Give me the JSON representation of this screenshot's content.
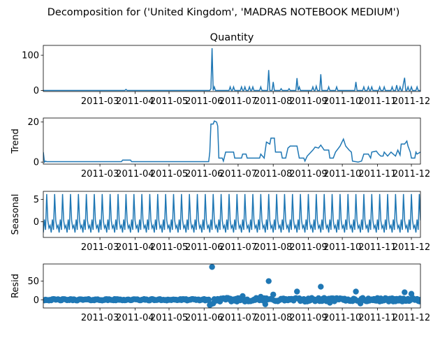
{
  "suptitle": "Decomposition for ('United Kingdom', 'MADRAS NOTEBOOK MEDIUM')",
  "line_color": "#1f77b4",
  "chart_data": [
    {
      "type": "line",
      "title": "Quantity",
      "ylabel": "",
      "xlim": [
        "2011-01-10",
        "2011-12-09"
      ],
      "ylim": [
        -3,
        128
      ],
      "yticks": [
        0,
        100
      ],
      "xticks": [
        "2011-03",
        "2011-04",
        "2011-05",
        "2011-06",
        "2011-07",
        "2011-08",
        "2011-09",
        "2011-10",
        "2011-11",
        "2011-12"
      ],
      "baseline": 0,
      "points": [
        [
          "2011-03-24",
          3
        ],
        [
          "2011-06-07",
          5
        ],
        [
          "2011-06-08",
          120
        ],
        [
          "2011-06-10",
          10
        ],
        [
          "2011-06-24",
          10
        ],
        [
          "2011-06-27",
          10
        ],
        [
          "2011-07-04",
          10
        ],
        [
          "2011-07-07",
          10
        ],
        [
          "2011-07-11",
          10
        ],
        [
          "2011-07-14",
          10
        ],
        [
          "2011-07-21",
          10
        ],
        [
          "2011-07-28",
          58
        ],
        [
          "2011-08-01",
          24
        ],
        [
          "2011-08-08",
          5
        ],
        [
          "2011-08-15",
          5
        ],
        [
          "2011-08-22",
          35
        ],
        [
          "2011-08-24",
          10
        ],
        [
          "2011-09-05",
          10
        ],
        [
          "2011-09-08",
          12
        ],
        [
          "2011-09-12",
          46
        ],
        [
          "2011-09-19",
          10
        ],
        [
          "2011-09-26",
          10
        ],
        [
          "2011-10-13",
          24
        ],
        [
          "2011-10-20",
          10
        ],
        [
          "2011-10-24",
          10
        ],
        [
          "2011-10-27",
          10
        ],
        [
          "2011-11-03",
          10
        ],
        [
          "2011-11-07",
          10
        ],
        [
          "2011-11-14",
          10
        ],
        [
          "2011-11-18",
          15
        ],
        [
          "2011-11-21",
          10
        ],
        [
          "2011-11-24",
          20
        ],
        [
          "2011-11-25",
          36
        ],
        [
          "2011-11-28",
          10
        ],
        [
          "2011-12-01",
          10
        ],
        [
          "2011-12-06",
          10
        ]
      ]
    },
    {
      "type": "line",
      "title": "",
      "ylabel": "Trend",
      "xlim": [
        "2011-01-10",
        "2011-12-09"
      ],
      "ylim": [
        -1,
        22
      ],
      "yticks": [
        0,
        20
      ],
      "xticks": [
        "2011-03",
        "2011-04",
        "2011-05",
        "2011-06",
        "2011-07",
        "2011-08",
        "2011-09",
        "2011-10",
        "2011-11",
        "2011-12"
      ],
      "points": [
        [
          "2011-01-10",
          5
        ],
        [
          "2011-01-11",
          0
        ],
        [
          "2011-01-12",
          0.5
        ],
        [
          "2011-01-13",
          0.2
        ],
        [
          "2011-03-20",
          0.2
        ],
        [
          "2011-03-21",
          1
        ],
        [
          "2011-03-28",
          1
        ],
        [
          "2011-03-29",
          0.2
        ],
        [
          "2011-06-05",
          0.2
        ],
        [
          "2011-06-06",
          5
        ],
        [
          "2011-06-07",
          19
        ],
        [
          "2011-06-09",
          19
        ],
        [
          "2011-06-10",
          20.5
        ],
        [
          "2011-06-12",
          20
        ],
        [
          "2011-06-13",
          18
        ],
        [
          "2011-06-14",
          2
        ],
        [
          "2011-06-17",
          2
        ],
        [
          "2011-06-18",
          0.5
        ],
        [
          "2011-06-20",
          5
        ],
        [
          "2011-06-27",
          5
        ],
        [
          "2011-06-28",
          2
        ],
        [
          "2011-07-04",
          2
        ],
        [
          "2011-07-05",
          4
        ],
        [
          "2011-07-08",
          4
        ],
        [
          "2011-07-09",
          2
        ],
        [
          "2011-07-20",
          2
        ],
        [
          "2011-07-21",
          4
        ],
        [
          "2011-07-24",
          2
        ],
        [
          "2011-07-26",
          10
        ],
        [
          "2011-07-29",
          9
        ],
        [
          "2011-07-30",
          12
        ],
        [
          "2011-08-02",
          12
        ],
        [
          "2011-08-03",
          5
        ],
        [
          "2011-08-08",
          5
        ],
        [
          "2011-08-09",
          2
        ],
        [
          "2011-08-12",
          2
        ],
        [
          "2011-08-14",
          7
        ],
        [
          "2011-08-16",
          8
        ],
        [
          "2011-08-22",
          8
        ],
        [
          "2011-08-24",
          2
        ],
        [
          "2011-08-28",
          2
        ],
        [
          "2011-08-29",
          0.5
        ],
        [
          "2011-08-31",
          3
        ],
        [
          "2011-09-05",
          6
        ],
        [
          "2011-09-07",
          7.5
        ],
        [
          "2011-09-10",
          7
        ],
        [
          "2011-09-12",
          8.5
        ],
        [
          "2011-09-15",
          6
        ],
        [
          "2011-09-19",
          6
        ],
        [
          "2011-09-20",
          2
        ],
        [
          "2011-09-23",
          2
        ],
        [
          "2011-09-25",
          5
        ],
        [
          "2011-09-29",
          8
        ],
        [
          "2011-10-02",
          11.5
        ],
        [
          "2011-10-04",
          8
        ],
        [
          "2011-10-07",
          6
        ],
        [
          "2011-10-09",
          5
        ],
        [
          "2011-10-10",
          0.5
        ],
        [
          "2011-10-15",
          0
        ],
        [
          "2011-10-18",
          0.5
        ],
        [
          "2011-10-20",
          4
        ],
        [
          "2011-10-24",
          4
        ],
        [
          "2011-10-26",
          2
        ],
        [
          "2011-10-27",
          5
        ],
        [
          "2011-10-31",
          5.5
        ],
        [
          "2011-11-02",
          4
        ],
        [
          "2011-11-04",
          3
        ],
        [
          "2011-11-06",
          3
        ],
        [
          "2011-11-07",
          5
        ],
        [
          "2011-11-10",
          3
        ],
        [
          "2011-11-13",
          5
        ],
        [
          "2011-11-15",
          4
        ],
        [
          "2011-11-17",
          3
        ],
        [
          "2011-11-19",
          6
        ],
        [
          "2011-11-21",
          3.5
        ],
        [
          "2011-11-22",
          9
        ],
        [
          "2011-11-25",
          9
        ],
        [
          "2011-11-27",
          10.5
        ],
        [
          "2011-11-28",
          8
        ],
        [
          "2011-11-30",
          5
        ],
        [
          "2011-12-01",
          2
        ],
        [
          "2011-12-04",
          2
        ],
        [
          "2011-12-05",
          5
        ],
        [
          "2011-12-06",
          4
        ],
        [
          "2011-12-09",
          5
        ]
      ]
    },
    {
      "type": "line",
      "title": "",
      "ylabel": "Seasonal",
      "xlim": [
        "2011-01-10",
        "2011-12-09"
      ],
      "ylim": [
        -3.5,
        6.8
      ],
      "yticks": [
        0,
        5
      ],
      "xticks": [
        "2011-03",
        "2011-04",
        "2011-05",
        "2011-06",
        "2011-07",
        "2011-08",
        "2011-09",
        "2011-10",
        "2011-11",
        "2011-12"
      ],
      "period_days": 7,
      "pattern": [
        -2.4,
        0.5,
        -1.8,
        6.2,
        0.3,
        -1.4,
        -0.8
      ]
    },
    {
      "type": "scatter",
      "title": "",
      "ylabel": "Resid",
      "xlim": [
        "2011-01-10",
        "2011-12-09"
      ],
      "ylim": [
        -22,
        96
      ],
      "yticks": [
        0,
        50
      ],
      "xticks": [
        "2011-03",
        "2011-04",
        "2011-05",
        "2011-06",
        "2011-07",
        "2011-08",
        "2011-09",
        "2011-10",
        "2011-11",
        "2011-12"
      ],
      "outliers": [
        [
          "2011-06-08",
          88
        ],
        [
          "2011-06-06",
          -14
        ],
        [
          "2011-06-07",
          -12
        ],
        [
          "2011-06-09",
          -10
        ],
        [
          "2011-07-28",
          50
        ],
        [
          "2011-07-25",
          -12
        ],
        [
          "2011-08-01",
          14
        ],
        [
          "2011-08-22",
          22
        ],
        [
          "2011-09-12",
          35
        ],
        [
          "2011-10-13",
          22
        ],
        [
          "2011-11-25",
          20
        ],
        [
          "2011-12-01",
          16
        ],
        [
          "2011-10-17",
          -10
        ],
        [
          "2011-07-05",
          10
        ],
        [
          "2011-07-21",
          8
        ],
        [
          "2011-09-20",
          -8
        ]
      ]
    }
  ]
}
